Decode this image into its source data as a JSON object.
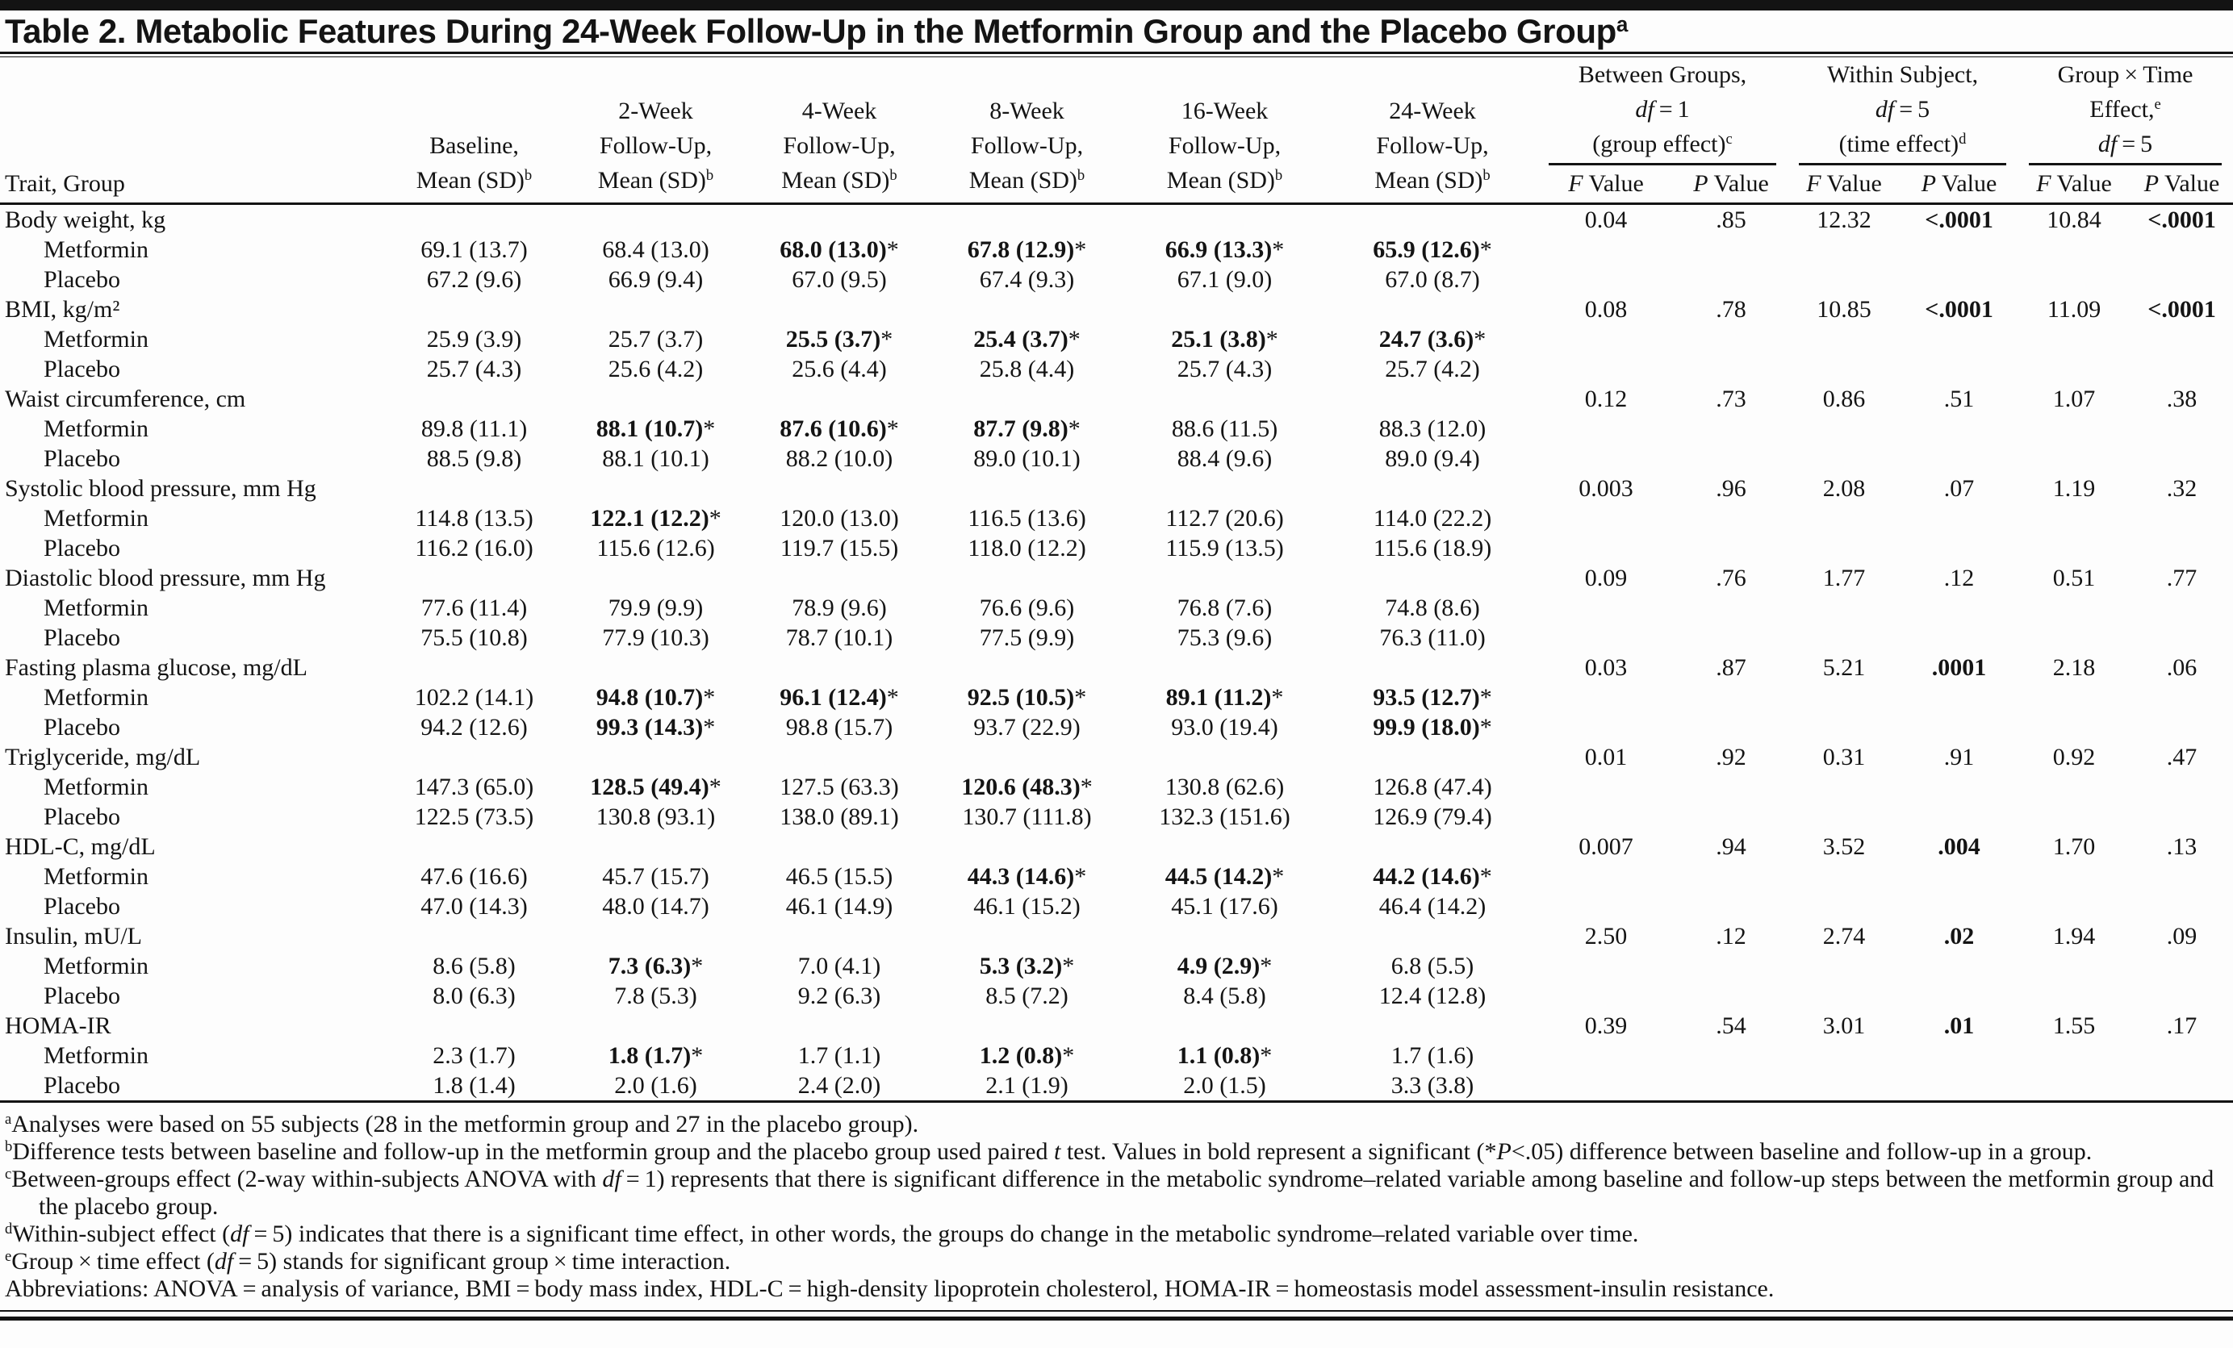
{
  "title": [
    {
      "t": "Table 2. Metabolic Features During 24-Week Follow-Up in the Metformin Group and the Placebo Group"
    },
    {
      "t": "a",
      "s": "sup"
    }
  ],
  "headers": {
    "trait": "Trait, Group",
    "weeks": [
      [
        {
          "t": "Baseline,\nMean (SD)"
        },
        {
          "t": "b",
          "s": "sup"
        }
      ],
      [
        {
          "t": "2-Week\nFollow-Up,\nMean (SD)"
        },
        {
          "t": "b",
          "s": "sup"
        }
      ],
      [
        {
          "t": "4-Week\nFollow-Up,\nMean (SD)"
        },
        {
          "t": "b",
          "s": "sup"
        }
      ],
      [
        {
          "t": "8-Week\nFollow-Up,\nMean (SD)"
        },
        {
          "t": "b",
          "s": "sup"
        }
      ],
      [
        {
          "t": "16-Week\nFollow-Up,\nMean (SD)"
        },
        {
          "t": "b",
          "s": "sup"
        }
      ],
      [
        {
          "t": "24-Week\nFollow-Up,\nMean (SD)"
        },
        {
          "t": "b",
          "s": "sup"
        }
      ]
    ],
    "stat_groups": [
      [
        {
          "t": "Between Groups,\n"
        },
        {
          "t": "df",
          "s": "i"
        },
        {
          "t": " = 1\n(group effect)"
        },
        {
          "t": "c",
          "s": "sup"
        }
      ],
      [
        {
          "t": "Within Subject,\n"
        },
        {
          "t": "df",
          "s": "i"
        },
        {
          "t": " = 5\n(time effect)"
        },
        {
          "t": "d",
          "s": "sup"
        }
      ],
      [
        {
          "t": "Group × Time\nEffect,"
        },
        {
          "t": "e",
          "s": "sup"
        },
        {
          "t": "\n"
        },
        {
          "t": "df",
          "s": "i"
        },
        {
          "t": " = 5"
        }
      ]
    ],
    "f_label": [
      {
        "t": "F",
        "s": "i"
      },
      {
        "t": " Value"
      }
    ],
    "p_label": [
      {
        "t": "P",
        "s": "i"
      },
      {
        "t": " Value"
      }
    ]
  },
  "table": {
    "rows": [
      {
        "trait": "Body weight, kg",
        "stats": [
          "0.04",
          ".85",
          "12.32",
          {
            "v": "<.0001",
            "b": true
          },
          "10.84",
          {
            "v": "<.0001",
            "b": true
          }
        ],
        "groups": [
          {
            "label": "Metformin",
            "cells": [
              "69.1 (13.7)",
              "68.4 (13.0)",
              {
                "v": "68.0 (13.0)",
                "sig": true
              },
              {
                "v": "67.8 (12.9)",
                "sig": true
              },
              {
                "v": "66.9 (13.3)",
                "sig": true
              },
              {
                "v": "65.9 (12.6)",
                "sig": true
              }
            ]
          },
          {
            "label": "Placebo",
            "cells": [
              "67.2 (9.6)",
              "66.9 (9.4)",
              "67.0 (9.5)",
              "67.4 (9.3)",
              "67.1 (9.0)",
              "67.0 (8.7)"
            ]
          }
        ]
      },
      {
        "trait": "BMI, kg/m²",
        "stats": [
          "0.08",
          ".78",
          "10.85",
          {
            "v": "<.0001",
            "b": true
          },
          "11.09",
          {
            "v": "<.0001",
            "b": true
          }
        ],
        "groups": [
          {
            "label": "Metformin",
            "cells": [
              "25.9 (3.9)",
              "25.7 (3.7)",
              {
                "v": "25.5 (3.7)",
                "sig": true
              },
              {
                "v": "25.4 (3.7)",
                "sig": true
              },
              {
                "v": "25.1 (3.8)",
                "sig": true
              },
              {
                "v": "24.7 (3.6)",
                "sig": true
              }
            ]
          },
          {
            "label": "Placebo",
            "cells": [
              "25.7 (4.3)",
              "25.6 (4.2)",
              "25.6 (4.4)",
              "25.8 (4.4)",
              "25.7 (4.3)",
              "25.7 (4.2)"
            ]
          }
        ]
      },
      {
        "trait": "Waist circumference, cm",
        "stats": [
          "0.12",
          ".73",
          "0.86",
          ".51",
          "1.07",
          ".38"
        ],
        "groups": [
          {
            "label": "Metformin",
            "cells": [
              "89.8 (11.1)",
              {
                "v": "88.1 (10.7)",
                "sig": true
              },
              {
                "v": "87.6 (10.6)",
                "sig": true
              },
              {
                "v": "87.7 (9.8)",
                "sig": true
              },
              "88.6 (11.5)",
              "88.3 (12.0)"
            ]
          },
          {
            "label": "Placebo",
            "cells": [
              "88.5 (9.8)",
              "88.1 (10.1)",
              "88.2 (10.0)",
              "89.0 (10.1)",
              "88.4 (9.6)",
              "89.0 (9.4)"
            ]
          }
        ]
      },
      {
        "trait": "Systolic blood pressure, mm Hg",
        "stats": [
          "0.003",
          ".96",
          "2.08",
          ".07",
          "1.19",
          ".32"
        ],
        "groups": [
          {
            "label": "Metformin",
            "cells": [
              "114.8 (13.5)",
              {
                "v": "122.1 (12.2)",
                "sig": true
              },
              "120.0 (13.0)",
              "116.5 (13.6)",
              "112.7 (20.6)",
              "114.0 (22.2)"
            ]
          },
          {
            "label": "Placebo",
            "cells": [
              "116.2 (16.0)",
              "115.6 (12.6)",
              "119.7 (15.5)",
              "118.0 (12.2)",
              "115.9 (13.5)",
              "115.6 (18.9)"
            ]
          }
        ]
      },
      {
        "trait": "Diastolic blood pressure, mm Hg",
        "stats": [
          "0.09",
          ".76",
          "1.77",
          ".12",
          "0.51",
          ".77"
        ],
        "groups": [
          {
            "label": "Metformin",
            "cells": [
              "77.6 (11.4)",
              "79.9 (9.9)",
              "78.9 (9.6)",
              "76.6 (9.6)",
              "76.8 (7.6)",
              "74.8 (8.6)"
            ]
          },
          {
            "label": "Placebo",
            "cells": [
              "75.5 (10.8)",
              "77.9 (10.3)",
              "78.7 (10.1)",
              "77.5 (9.9)",
              "75.3 (9.6)",
              "76.3 (11.0)"
            ]
          }
        ]
      },
      {
        "trait": "Fasting plasma glucose, mg/dL",
        "stats": [
          "0.03",
          ".87",
          "5.21",
          {
            "v": ".0001",
            "b": true
          },
          "2.18",
          ".06"
        ],
        "groups": [
          {
            "label": "Metformin",
            "cells": [
              "102.2 (14.1)",
              {
                "v": "94.8 (10.7)",
                "sig": true
              },
              {
                "v": "96.1 (12.4)",
                "sig": true
              },
              {
                "v": "92.5 (10.5)",
                "sig": true
              },
              {
                "v": "89.1 (11.2)",
                "sig": true
              },
              {
                "v": "93.5 (12.7)",
                "sig": true
              }
            ]
          },
          {
            "label": "Placebo",
            "cells": [
              "94.2 (12.6)",
              {
                "v": "99.3 (14.3)",
                "sig": true
              },
              "98.8 (15.7)",
              "93.7 (22.9)",
              "93.0 (19.4)",
              {
                "v": "99.9 (18.0)",
                "sig": true
              }
            ]
          }
        ]
      },
      {
        "trait": "Triglyceride, mg/dL",
        "stats": [
          "0.01",
          ".92",
          "0.31",
          ".91",
          "0.92",
          ".47"
        ],
        "groups": [
          {
            "label": "Metformin",
            "cells": [
              "147.3 (65.0)",
              {
                "v": "128.5 (49.4)",
                "sig": true
              },
              "127.5 (63.3)",
              {
                "v": "120.6 (48.3)",
                "sig": true
              },
              "130.8 (62.6)",
              "126.8 (47.4)"
            ]
          },
          {
            "label": "Placebo",
            "cells": [
              "122.5 (73.5)",
              "130.8 (93.1)",
              "138.0 (89.1)",
              "130.7 (111.8)",
              "132.3 (151.6)",
              "126.9 (79.4)"
            ]
          }
        ]
      },
      {
        "trait": "HDL-C, mg/dL",
        "stats": [
          "0.007",
          ".94",
          "3.52",
          {
            "v": ".004",
            "b": true
          },
          "1.70",
          ".13"
        ],
        "groups": [
          {
            "label": "Metformin",
            "cells": [
              "47.6 (16.6)",
              "45.7 (15.7)",
              "46.5 (15.5)",
              {
                "v": "44.3 (14.6)",
                "sig": true
              },
              {
                "v": "44.5 (14.2)",
                "sig": true
              },
              {
                "v": "44.2 (14.6)",
                "sig": true
              }
            ]
          },
          {
            "label": "Placebo",
            "cells": [
              "47.0 (14.3)",
              "48.0 (14.7)",
              "46.1 (14.9)",
              "46.1 (15.2)",
              "45.1 (17.6)",
              "46.4 (14.2)"
            ]
          }
        ]
      },
      {
        "trait": "Insulin, mU/L",
        "stats": [
          "2.50",
          ".12",
          "2.74",
          {
            "v": ".02",
            "b": true
          },
          "1.94",
          ".09"
        ],
        "groups": [
          {
            "label": "Metformin",
            "cells": [
              "8.6 (5.8)",
              {
                "v": "7.3 (6.3)",
                "sig": true
              },
              "7.0 (4.1)",
              {
                "v": "5.3 (3.2)",
                "sig": true
              },
              {
                "v": "4.9 (2.9)",
                "sig": true
              },
              "6.8 (5.5)"
            ]
          },
          {
            "label": "Placebo",
            "cells": [
              "8.0 (6.3)",
              "7.8 (5.3)",
              "9.2 (6.3)",
              "8.5 (7.2)",
              "8.4 (5.8)",
              "12.4 (12.8)"
            ]
          }
        ]
      },
      {
        "trait": "HOMA-IR",
        "stats": [
          "0.39",
          ".54",
          "3.01",
          {
            "v": ".01",
            "b": true
          },
          "1.55",
          ".17"
        ],
        "groups": [
          {
            "label": "Metformin",
            "cells": [
              "2.3 (1.7)",
              {
                "v": "1.8 (1.7)",
                "sig": true
              },
              "1.7 (1.1)",
              {
                "v": "1.2 (0.8)",
                "sig": true
              },
              {
                "v": "1.1 (0.8)",
                "sig": true
              },
              "1.7 (1.6)"
            ]
          },
          {
            "label": "Placebo",
            "cells": [
              "1.8 (1.4)",
              "2.0 (1.6)",
              "2.4 (2.0)",
              "2.1 (1.9)",
              "2.0 (1.5)",
              "3.3 (3.8)"
            ]
          }
        ]
      }
    ]
  },
  "footnotes": [
    [
      {
        "t": "a",
        "s": "sup"
      },
      {
        "t": "Analyses were based on 55 subjects (28 in the metformin group and 27 in the placebo group)."
      }
    ],
    [
      {
        "t": "b",
        "s": "sup"
      },
      {
        "t": "Difference tests between baseline and follow-up in the metformin group and the placebo group used paired "
      },
      {
        "t": "t",
        "s": "i"
      },
      {
        "t": " test. Values in bold represent a significant (*"
      },
      {
        "t": "P",
        "s": "i"
      },
      {
        "t": "<.05) difference between baseline and follow-up in a group."
      }
    ],
    [
      {
        "t": "c",
        "s": "sup"
      },
      {
        "t": "Between-groups effect (2-way within-subjects ANOVA with "
      },
      {
        "t": "df",
        "s": "i"
      },
      {
        "t": " = 1) represents that there is significant difference in the metabolic syndrome–related variable among baseline and follow-up steps between the metformin group and the placebo group."
      }
    ],
    [
      {
        "t": "d",
        "s": "sup"
      },
      {
        "t": "Within-subject effect ("
      },
      {
        "t": "df",
        "s": "i"
      },
      {
        "t": " = 5) indicates that there is a significant time effect, in other words, the groups do change in the metabolic syndrome–related variable over time."
      }
    ],
    [
      {
        "t": "e",
        "s": "sup"
      },
      {
        "t": "Group × time effect ("
      },
      {
        "t": "df",
        "s": "i"
      },
      {
        "t": " = 5) stands for significant group × time interaction."
      }
    ],
    [
      {
        "t": "Abbreviations: ANOVA = analysis of variance, BMI = body mass index, HDL-C = high-density lipoprotein cholesterol, HOMA-IR = homeostasis model assessment-insulin resistance."
      }
    ]
  ]
}
